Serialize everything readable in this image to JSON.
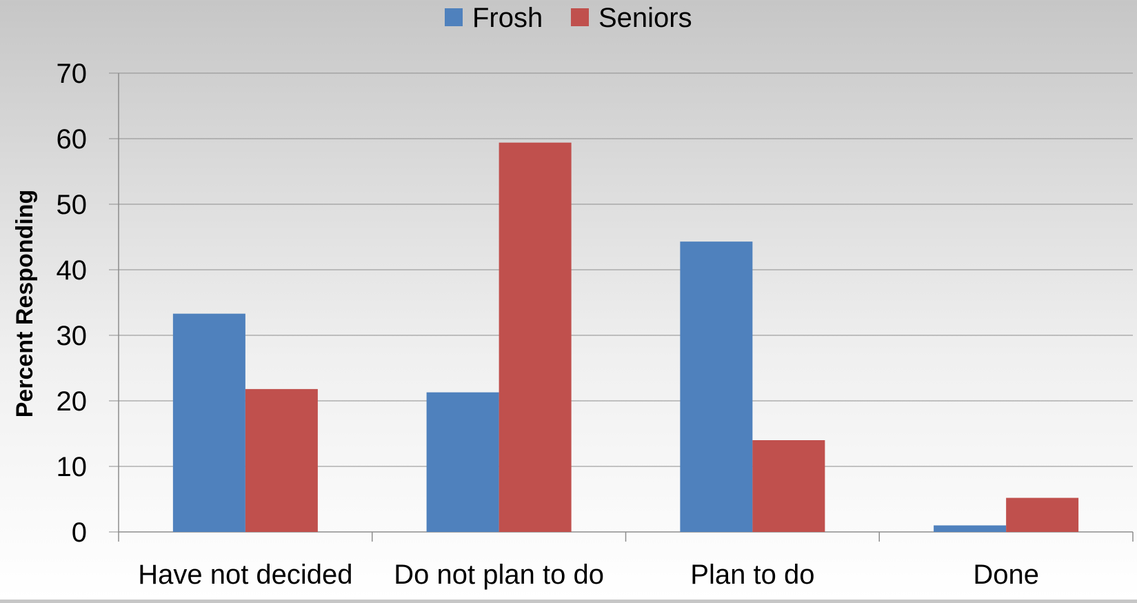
{
  "chart_data": {
    "type": "bar",
    "title": "",
    "xlabel": "",
    "ylabel": "Percent Responding",
    "ylim": [
      0,
      70
    ],
    "yticks": [
      0,
      10,
      20,
      30,
      40,
      50,
      60,
      70
    ],
    "grid": true,
    "legend_position": "top-center",
    "categories": [
      "Have not decided",
      "Do not plan to do",
      "Plan to do",
      "Done"
    ],
    "series": [
      {
        "name": "Frosh",
        "color": "#4f81bd",
        "values": [
          33.3,
          21.3,
          44.3,
          1.0
        ]
      },
      {
        "name": "Seniors",
        "color": "#c0504d",
        "values": [
          21.8,
          59.4,
          14.0,
          5.2
        ]
      }
    ]
  }
}
